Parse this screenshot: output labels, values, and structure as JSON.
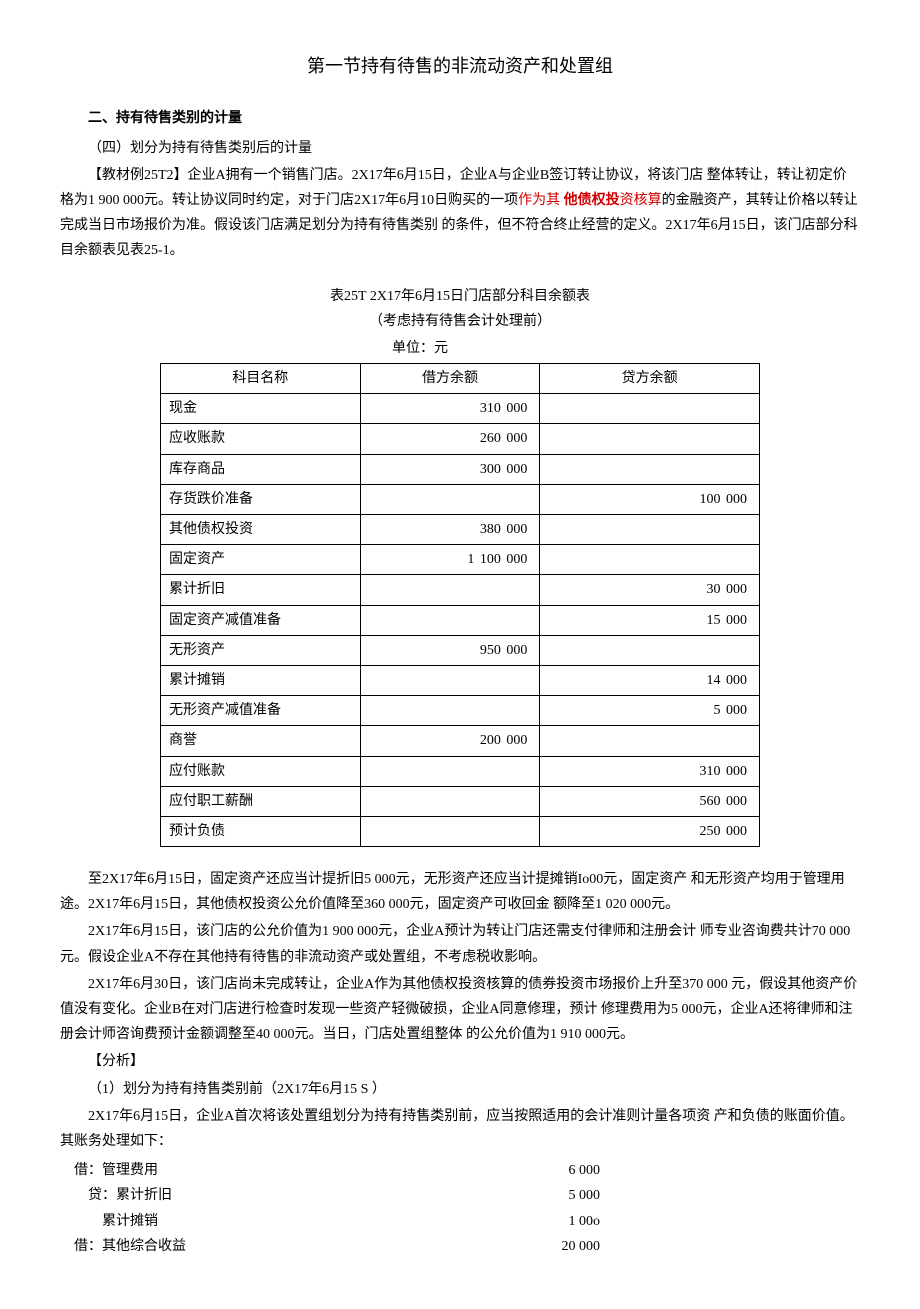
{
  "title": "第一节持有待售的非流动资产和处置组",
  "section_heading": "二、持有待售类别的计量",
  "sub_heading": "（四）划分为持有待售类别后的计量",
  "para1_a": "【教材例25T2】企业A拥有一个销售门店。2X17年6月15日，企业A与企业B签订转让协议，将该门店 整体转让，转让初定价格为1 900 000元。转让协议同时约定，对于门店2X17年6月10日购买的一项",
  "para1_red1": "作为其 ",
  "para1_red_bold": "他债权投",
  "para1_red2": "资核算",
  "para1_b": "的金融资产，其转让价格以转让完成当日市场报价为准。假设该门店满足划分为持有待售类别 的条件，但不符合终止经营的定义。2X17年6月15日，该门店部分科目余额表见表25-1。",
  "table_title": "表25T 2X17年6月15日门店部分科目余额表",
  "table_subtitle": "（考虑持有待售会计处理前）",
  "table_unit": "单位：元",
  "columns": [
    "科目名称",
    "借方余额",
    "贷方余额"
  ],
  "rows": [
    {
      "name": "现金",
      "debit": "310 000",
      "credit": ""
    },
    {
      "name": "应收账款",
      "debit": "260 000",
      "credit": ""
    },
    {
      "name": "库存商品",
      "debit": "300 000",
      "credit": ""
    },
    {
      "name": "存货跌价准备",
      "debit": "",
      "credit": "100 000"
    },
    {
      "name": "其他债权投资",
      "debit": "380 000",
      "credit": ""
    },
    {
      "name": "固定资产",
      "debit": "1 100 000",
      "credit": ""
    },
    {
      "name": "累计折旧",
      "debit": "",
      "credit": "30 000"
    },
    {
      "name": "固定资产减值准备",
      "debit": "",
      "credit": "15 000"
    },
    {
      "name": "无形资产",
      "debit": "950 000",
      "credit": ""
    },
    {
      "name": "累计摊销",
      "debit": "",
      "credit": "14 000"
    },
    {
      "name": "无形资产减值准备",
      "debit": "",
      "credit": "5 000"
    },
    {
      "name": "商誉",
      "debit": "200 000",
      "credit": ""
    },
    {
      "name": "应付账款",
      "debit": "",
      "credit": "310 000"
    },
    {
      "name": "应付职工薪酬",
      "debit": "",
      "credit": "560 000"
    },
    {
      "name": "预计负债",
      "debit": "",
      "credit": "250 000"
    }
  ],
  "para2": "至2X17年6月15日，固定资产还应当计提折旧5 000元，无形资产还应当计提摊销Io00元，固定资产 和无形资产均用于管理用途。2X17年6月15日，其他债权投资公允价值降至360 000元，固定资产可收回金 额降至1 020 000元。",
  "para3": "2X17年6月15日，该门店的公允价值为1 900 000元，企业A预计为转让门店还需支付律师和注册会计 师专业咨询费共计70 000元。假设企业A不存在其他持有待售的非流动资产或处置组，不考虑税收影响。",
  "para4": "2X17年6月30日，该门店尚未完成转让，企业A作为其他债权投资核算的债券投资市场报价上升至370 000 元，假设其他资产价值没有变化。企业B在对门店进行检查时发现一些资产轻微破损，企业A同意修理，预计 修理费用为5 000元，企业A还将律师和注册会计师咨询费预计金额调整至40 000元。当日，门店处置组整体 的公允价值为1 910 000元。",
  "analysis_label": "【分析】",
  "analysis_1": "（1）划分为持有持售类别前（2X17年6月15 S ）",
  "para5": "2X17年6月15日，企业A首次将该处置组划分为持有持售类别前，应当按照适用的会计准则计量各项资 产和负债的账面价值。其账务处理如下：",
  "entries": [
    {
      "label": "    借：管理费用",
      "amount": "6 000"
    },
    {
      "label": "        贷：累计折旧",
      "amount": "5 000"
    },
    {
      "label": "            累计摊销",
      "amount": "1 00o"
    },
    {
      "label": "    借：其他综合收益",
      "amount": "20 000"
    }
  ]
}
